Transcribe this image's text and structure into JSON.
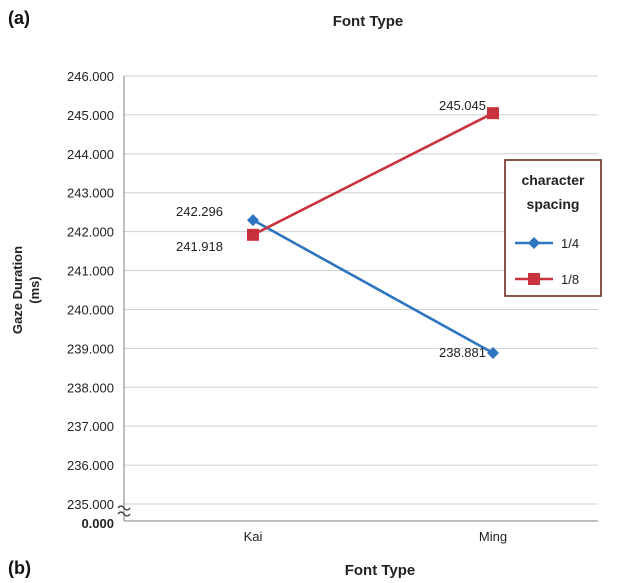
{
  "panel_labels": {
    "top": "(a)",
    "bottom": "(b)"
  },
  "bottom_title": "Font Type",
  "colors": {
    "series_1": "#2E75C0",
    "series_2": "#C8323C",
    "grid": "#CFCFCF",
    "axis": "#7F7F7F"
  },
  "chart_data": {
    "type": "line",
    "title": "Font Type",
    "xlabel": "",
    "ylabel_lines": [
      "Gaze Duration",
      "(ms)"
    ],
    "categories": [
      "Kai",
      "Ming"
    ],
    "ylim": [
      235,
      246
    ],
    "y_ticks": [
      "246.000",
      "245.000",
      "244.000",
      "243.000",
      "242.000",
      "241.000",
      "240.000",
      "239.000",
      "238.000",
      "237.000",
      "236.000",
      "235.000"
    ],
    "y_axis_break_label": "0.000",
    "grid": true,
    "legend": {
      "title_lines": [
        "character",
        "spacing"
      ],
      "placement": "right"
    },
    "series": [
      {
        "name": "1/4",
        "marker": "diamond",
        "values": [
          242.296,
          238.881
        ],
        "labels": [
          "242.296",
          "238.881"
        ]
      },
      {
        "name": "1/8",
        "marker": "square",
        "values": [
          241.918,
          245.045
        ],
        "labels": [
          "241.918",
          "245.045"
        ]
      }
    ]
  }
}
